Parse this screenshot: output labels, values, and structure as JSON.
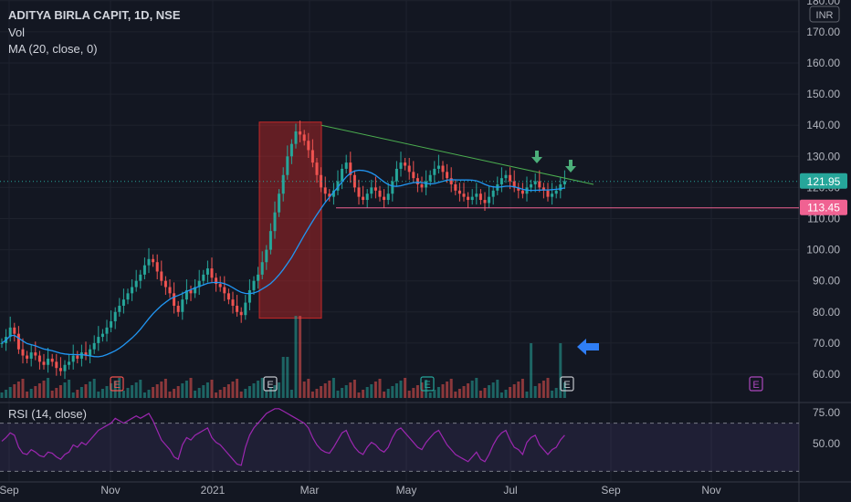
{
  "header": {
    "symbol_line": "ADITYA BIRLA CAPIT, 1D, NSE",
    "vol_label": "Vol",
    "ma_label": "MA (20, close, 0)"
  },
  "currency": "INR",
  "rsi_label": "RSI (14, close)",
  "colors": {
    "background": "#131722",
    "up": "#26a69a",
    "down": "#ef5350",
    "ma": "#2196f3",
    "rsi": "#9c27b0",
    "trendline": "#4caf50",
    "support": "#f06292",
    "grid": "#1e222d",
    "highlight_box": "#c62828",
    "arrow_green": "#4caf7a",
    "arrow_blue": "#2f7ef5"
  },
  "chart_data": {
    "type": "candlestick",
    "y_ticks": [
      "60.00",
      "70.00",
      "80.00",
      "90.00",
      "100.00",
      "110.00",
      "120.00",
      "130.00",
      "140.00",
      "150.00",
      "160.00",
      "170.00",
      "180.00"
    ],
    "ylim": [
      55,
      181
    ],
    "x_ticks": [
      "Sep",
      "Nov",
      "2021",
      "Mar",
      "May",
      "Jul",
      "Sep",
      "Nov"
    ],
    "last_price_label": "121.95",
    "support_label": "113.45",
    "rsi_ticks": [
      "75.00",
      "50.00"
    ],
    "rsi_band": [
      70,
      30
    ],
    "earnings_markers": [
      {
        "date": "Oct",
        "label": "E",
        "color": "#ef5350"
      },
      {
        "date": "Jan",
        "label": "E",
        "color": "#c3c5cb"
      },
      {
        "date": "May",
        "label": "E",
        "color": "#26a69a"
      },
      {
        "date": "Jul",
        "label": "E",
        "color": "#c3c5cb"
      },
      {
        "date": "Oct",
        "label": "E",
        "color": "#ab47bc"
      }
    ],
    "trendline": {
      "start_price": 140,
      "end_price": 121
    },
    "support_price": 113.45,
    "highlight_box": {
      "price_low": 78,
      "price_high": 141
    },
    "close_series": [
      70,
      72,
      75,
      73,
      68,
      66,
      65,
      67,
      66,
      64,
      63,
      65,
      64,
      62,
      61,
      63,
      64,
      66,
      65,
      67,
      66,
      68,
      70,
      72,
      73,
      75,
      77,
      80,
      82,
      84,
      86,
      88,
      90,
      92,
      95,
      97,
      96,
      93,
      90,
      88,
      86,
      82,
      80,
      84,
      87,
      86,
      88,
      90,
      92,
      94,
      91,
      89,
      88,
      86,
      84,
      82,
      80,
      79,
      83,
      87,
      90,
      92,
      96,
      100,
      106,
      112,
      118,
      124,
      130,
      134,
      138,
      137,
      135,
      132,
      128,
      124,
      120,
      118,
      117,
      119,
      122,
      126,
      128,
      124,
      120,
      117,
      116,
      118,
      120,
      119,
      117,
      116,
      118,
      122,
      126,
      128,
      127,
      125,
      123,
      121,
      120,
      122,
      124,
      126,
      127,
      125,
      123,
      121,
      119,
      118,
      117,
      116,
      117,
      118,
      116,
      115,
      117,
      119,
      121,
      123,
      124,
      122,
      120,
      119,
      118,
      120,
      121,
      122,
      120,
      119,
      117,
      118,
      119,
      121,
      122
    ],
    "rsi_series": [
      55,
      58,
      62,
      60,
      50,
      45,
      44,
      48,
      46,
      43,
      42,
      46,
      45,
      42,
      40,
      44,
      46,
      52,
      50,
      54,
      52,
      56,
      60,
      64,
      66,
      68,
      70,
      74,
      72,
      70,
      72,
      74,
      76,
      74,
      76,
      78,
      72,
      64,
      56,
      52,
      48,
      42,
      40,
      52,
      58,
      56,
      60,
      62,
      64,
      66,
      58,
      54,
      52,
      48,
      44,
      40,
      36,
      35,
      50,
      60,
      66,
      70,
      74,
      78,
      80,
      82,
      82,
      80,
      78,
      76,
      74,
      72,
      70,
      66,
      58,
      52,
      48,
      46,
      45,
      50,
      56,
      62,
      64,
      56,
      50,
      46,
      44,
      50,
      54,
      52,
      48,
      46,
      50,
      58,
      64,
      66,
      62,
      58,
      54,
      50,
      48,
      54,
      58,
      62,
      64,
      58,
      52,
      48,
      44,
      42,
      40,
      38,
      42,
      46,
      40,
      38,
      44,
      52,
      58,
      62,
      64,
      56,
      50,
      48,
      44,
      54,
      58,
      60,
      52,
      48,
      44,
      48,
      50,
      56,
      60
    ]
  }
}
